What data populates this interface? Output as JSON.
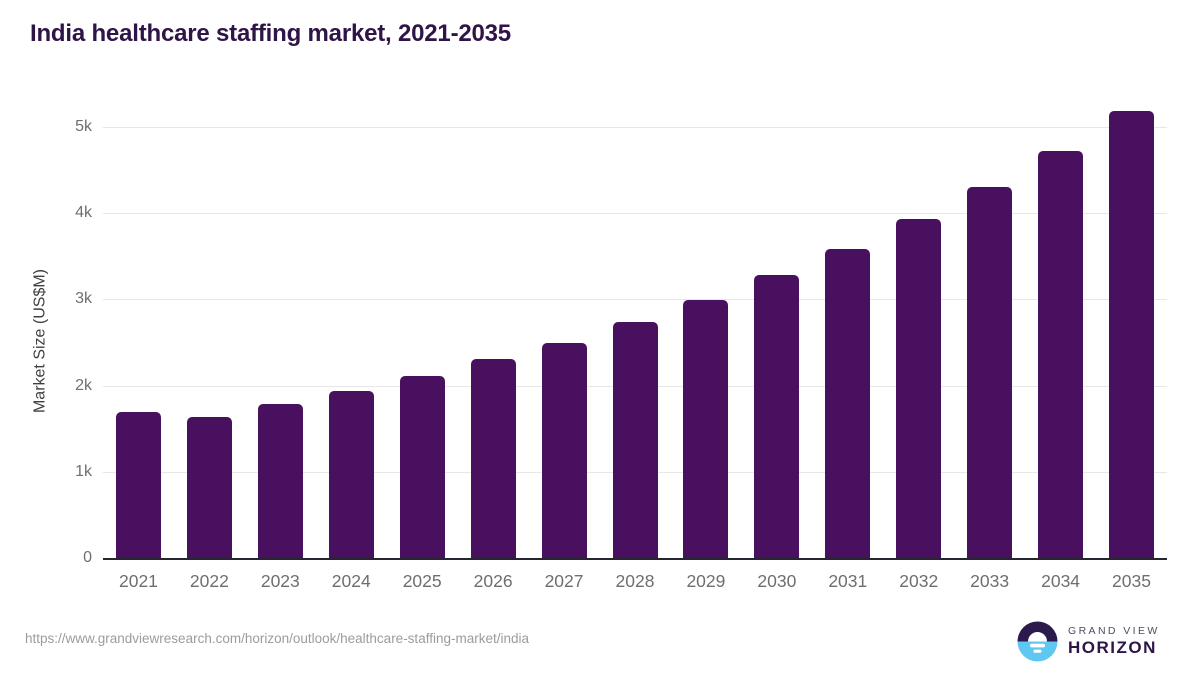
{
  "header": {
    "title": "India healthcare staffing market, 2021-2035"
  },
  "chart_data": {
    "type": "bar",
    "title": "India healthcare staffing market, 2021-2035",
    "categories": [
      "2021",
      "2022",
      "2023",
      "2024",
      "2025",
      "2026",
      "2027",
      "2028",
      "2029",
      "2030",
      "2031",
      "2032",
      "2033",
      "2034",
      "2035"
    ],
    "values": [
      1690,
      1640,
      1790,
      1940,
      2110,
      2310,
      2490,
      2740,
      2990,
      3280,
      3580,
      3930,
      4300,
      4720,
      5190
    ],
    "xlabel": "",
    "ylabel": "Market Size (US$M)",
    "ylim": [
      0,
      5000
    ],
    "ytick_step": 1000,
    "ytick_labels": [
      "0",
      "1k",
      "2k",
      "3k",
      "4k",
      "5k"
    ],
    "grid": "horizontal-only",
    "legend": "none",
    "bar_corner_radius": "rounded-top"
  },
  "footer": {
    "source_url": "https://www.grandviewresearch.com/horizon/outlook/healthcare-staffing-market/india",
    "logo": {
      "line1": "GRAND VIEW",
      "line2": "HORIZON",
      "icon": "horizon-sun-circle"
    }
  },
  "colors": {
    "bar": "#48105f",
    "title_text": "#2e1447",
    "axis_tick_label": "#6f6f6f",
    "axis_title": "#3f3f3f",
    "gridline": "#e7e7e8",
    "baseline": "#262630",
    "url_text": "#9c9c9c",
    "logo_blue": "#5ec8f2",
    "logo_dark": "#2c1a4d"
  }
}
